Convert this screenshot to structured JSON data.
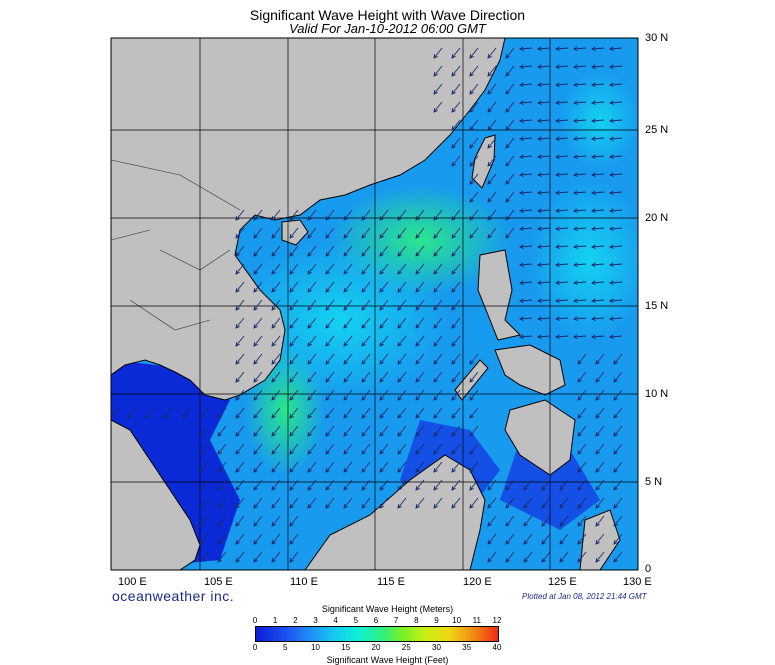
{
  "title": "Significant Wave Height with Wave Direction",
  "subtitle": "Valid For Jan-10-2012 06:00 GMT",
  "lon_labels": [
    "100 E",
    "105 E",
    "110 E",
    "115 E",
    "120 E",
    "125 E",
    "130 E"
  ],
  "lat_labels": [
    "0",
    "5 N",
    "10 N",
    "15 N",
    "20 N",
    "25 N",
    "30 N"
  ],
  "brand": "oceanweather inc.",
  "plotted": "Plotted at Jan 08, 2012 21:44 GMT",
  "colorbar": {
    "title_top": "Significant Wave Height (Meters)",
    "title_bottom": "Significant Wave Height (Feet)",
    "meters": [
      "0",
      "1",
      "2",
      "3",
      "4",
      "5",
      "6",
      "7",
      "8",
      "9",
      "10",
      "11",
      "12"
    ],
    "feet": [
      "0",
      "5",
      "10",
      "15",
      "20",
      "25",
      "30",
      "35",
      "40"
    ]
  },
  "colors": {
    "land": "#c0c0c0",
    "sea_deep": "#1448e6",
    "sea_mid": "#14b4f0",
    "sea_high": "#2cf080"
  },
  "arrow_direction": "southwest"
}
